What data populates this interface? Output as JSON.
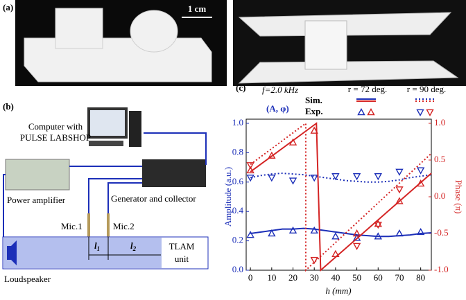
{
  "panel_a": {
    "label": "(a)",
    "scale_bar": "1 cm"
  },
  "panel_b": {
    "label": "(b)",
    "computer": [
      "Computer with",
      "PULSE LABSHOP"
    ],
    "power_amplifier": "Power amplifier",
    "generator": "Generator and collector",
    "mic1": "Mic.1",
    "mic2": "Mic.2",
    "l1": {
      "symbol": "l",
      "subscript": "1"
    },
    "l2": {
      "symbol": "l",
      "subscript": "2"
    },
    "unit": [
      "TLAM",
      "unit"
    ],
    "loudspeaker": "Loudspeaker"
  },
  "chart_data": {
    "type": "line",
    "panel_label": "(c)",
    "annotation": "f=2.0 kHz",
    "quantities": "(A, φ)",
    "legend": {
      "rows": [
        "Sim.",
        "Exp."
      ],
      "columns": [
        "r = 72 deg.",
        "r = 90 deg."
      ]
    },
    "xlabel": "h (mm)",
    "ylabel": "Amplitude (a.u.)",
    "y2label": "Phase (π)",
    "xlim": [
      -2,
      85
    ],
    "xticks": [
      0,
      10,
      20,
      30,
      40,
      50,
      60,
      70,
      80
    ],
    "ylim": [
      0,
      1
    ],
    "yticks": [
      {
        "value": 0,
        "label": "0.0"
      },
      {
        "value": 0.2,
        "label": "0.2"
      },
      {
        "value": 0.4,
        "label": "0.4"
      },
      {
        "value": 0.6,
        "label": "0.6"
      },
      {
        "value": 0.8,
        "label": "0.8"
      },
      {
        "value": 1,
        "label": "1.0"
      }
    ],
    "y2lim": [
      -1,
      1
    ],
    "y2ticks": [
      {
        "value": -1,
        "label": "-1.0"
      },
      {
        "value": -0.5,
        "label": "-0.5"
      },
      {
        "value": 0,
        "label": "0.0"
      },
      {
        "value": 0.5,
        "label": "0.5"
      },
      {
        "value": 1,
        "label": "1.0"
      }
    ],
    "series": [
      {
        "legend_row": 0,
        "legend_column": 0,
        "color": "#1c2fb8",
        "style": "solid",
        "x": [
          0,
          5,
          10,
          15,
          20,
          25,
          30,
          35,
          40,
          45,
          50,
          55,
          60,
          65,
          70,
          75,
          80,
          85
        ],
        "values": [
          0.25,
          0.26,
          0.27,
          0.28,
          0.28,
          0.285,
          0.28,
          0.27,
          0.26,
          0.25,
          0.24,
          0.235,
          0.23,
          0.23,
          0.235,
          0.24,
          0.25,
          0.255
        ]
      },
      {
        "legend_row": 0,
        "legend_column": 1,
        "color": "#1c2fb8",
        "style": "dotted",
        "x": [
          0,
          5,
          10,
          15,
          20,
          25,
          30,
          35,
          40,
          45,
          50,
          55,
          60,
          65,
          70,
          75,
          80,
          85
        ],
        "values": [
          0.63,
          0.645,
          0.655,
          0.66,
          0.655,
          0.65,
          0.64,
          0.63,
          0.62,
          0.61,
          0.605,
          0.6,
          0.6,
          0.605,
          0.615,
          0.63,
          0.64,
          0.65
        ]
      },
      {
        "legend_row": 1,
        "legend_column": 0,
        "color": "#1c2fb8",
        "marker": "up",
        "x": [
          0,
          10,
          20,
          30,
          40,
          50,
          60,
          70,
          80
        ],
        "values": [
          0.24,
          0.25,
          0.27,
          0.27,
          0.23,
          0.22,
          0.23,
          0.25,
          0.26
        ]
      },
      {
        "legend_row": 1,
        "legend_column": 1,
        "color": "#1c2fb8",
        "marker": "down",
        "x": [
          0,
          10,
          20,
          30,
          40,
          50,
          60,
          70,
          80
        ],
        "values": [
          0.63,
          0.63,
          0.61,
          0.63,
          0.64,
          0.64,
          0.64,
          0.67,
          0.68
        ]
      },
      {
        "legend_row": 0,
        "legend_column": 0,
        "color": "#d42424",
        "style": "solid",
        "axis": "y2",
        "x": [
          0,
          31,
          33,
          85
        ],
        "values": [
          0.34,
          1,
          -1,
          0.32
        ]
      },
      {
        "legend_row": 0,
        "legend_column": 1,
        "color": "#d42424",
        "style": "dotted",
        "axis": "y2",
        "x": [
          0,
          26,
          26,
          85
        ],
        "values": [
          0.44,
          1,
          -1,
          0.59
        ]
      },
      {
        "legend_row": 1,
        "legend_column": 0,
        "color": "#d42424",
        "marker": "up",
        "axis": "y2",
        "x": [
          0,
          10,
          20,
          30,
          40,
          50,
          60,
          70,
          80
        ],
        "values": [
          0.36,
          0.56,
          0.74,
          0.9,
          -0.78,
          -0.5,
          -0.37,
          -0.06,
          0.18
        ]
      },
      {
        "legend_row": 1,
        "legend_column": 1,
        "color": "#d42424",
        "marker": "down",
        "axis": "y2",
        "x": [
          0,
          30,
          50,
          60,
          70
        ],
        "values": [
          0.43,
          -0.86,
          -0.67,
          -0.38,
          0.1
        ]
      }
    ]
  }
}
